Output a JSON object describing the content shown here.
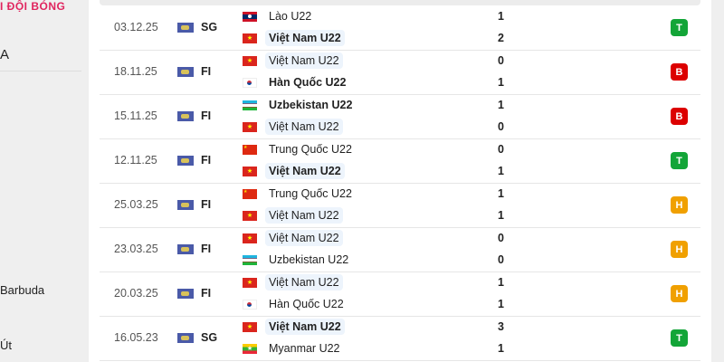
{
  "sidebar": {
    "heading": "I ĐỘI BÓNG",
    "item_a": "A",
    "item_barbuda": "Barbuda",
    "item_ut": "Út"
  },
  "colors": {
    "win": "#13a538",
    "loss": "#dc0000",
    "draw": "#f0a000",
    "highlight": "#edf4fc"
  },
  "matches": [
    {
      "date": "03.12.25",
      "comp": "SG",
      "home": {
        "name": "Lào U22",
        "flag": "laos",
        "bold": false,
        "me": false
      },
      "away": {
        "name": "Việt Nam U22",
        "flag": "vietnam",
        "bold": true,
        "me": true
      },
      "home_score": "1",
      "away_score": "2",
      "result": "T",
      "result_type": "win"
    },
    {
      "date": "18.11.25",
      "comp": "FI",
      "home": {
        "name": "Việt Nam U22",
        "flag": "vietnam",
        "bold": false,
        "me": true
      },
      "away": {
        "name": "Hàn Quốc U22",
        "flag": "korea",
        "bold": true,
        "me": false
      },
      "home_score": "0",
      "away_score": "1",
      "result": "B",
      "result_type": "loss"
    },
    {
      "date": "15.11.25",
      "comp": "FI",
      "home": {
        "name": "Uzbekistan U22",
        "flag": "uzbekistan",
        "bold": true,
        "me": false
      },
      "away": {
        "name": "Việt Nam U22",
        "flag": "vietnam",
        "bold": false,
        "me": true
      },
      "home_score": "1",
      "away_score": "0",
      "result": "B",
      "result_type": "loss"
    },
    {
      "date": "12.11.25",
      "comp": "FI",
      "home": {
        "name": "Trung Quốc U22",
        "flag": "china",
        "bold": false,
        "me": false
      },
      "away": {
        "name": "Việt Nam U22",
        "flag": "vietnam",
        "bold": true,
        "me": true
      },
      "home_score": "0",
      "away_score": "1",
      "result": "T",
      "result_type": "win"
    },
    {
      "date": "25.03.25",
      "comp": "FI",
      "home": {
        "name": "Trung Quốc U22",
        "flag": "china",
        "bold": false,
        "me": false
      },
      "away": {
        "name": "Việt Nam U22",
        "flag": "vietnam",
        "bold": false,
        "me": true
      },
      "home_score": "1",
      "away_score": "1",
      "result": "H",
      "result_type": "draw"
    },
    {
      "date": "23.03.25",
      "comp": "FI",
      "home": {
        "name": "Việt Nam U22",
        "flag": "vietnam",
        "bold": false,
        "me": true
      },
      "away": {
        "name": "Uzbekistan U22",
        "flag": "uzbekistan",
        "bold": false,
        "me": false
      },
      "home_score": "0",
      "away_score": "0",
      "result": "H",
      "result_type": "draw"
    },
    {
      "date": "20.03.25",
      "comp": "FI",
      "home": {
        "name": "Việt Nam U22",
        "flag": "vietnam",
        "bold": false,
        "me": true
      },
      "away": {
        "name": "Hàn Quốc U22",
        "flag": "korea",
        "bold": false,
        "me": false
      },
      "home_score": "1",
      "away_score": "1",
      "result": "H",
      "result_type": "draw"
    },
    {
      "date": "16.05.23",
      "comp": "SG",
      "home": {
        "name": "Việt Nam U22",
        "flag": "vietnam",
        "bold": true,
        "me": true
      },
      "away": {
        "name": "Myanmar U22",
        "flag": "myanmar",
        "bold": false,
        "me": false
      },
      "home_score": "3",
      "away_score": "1",
      "result": "T",
      "result_type": "win"
    }
  ]
}
